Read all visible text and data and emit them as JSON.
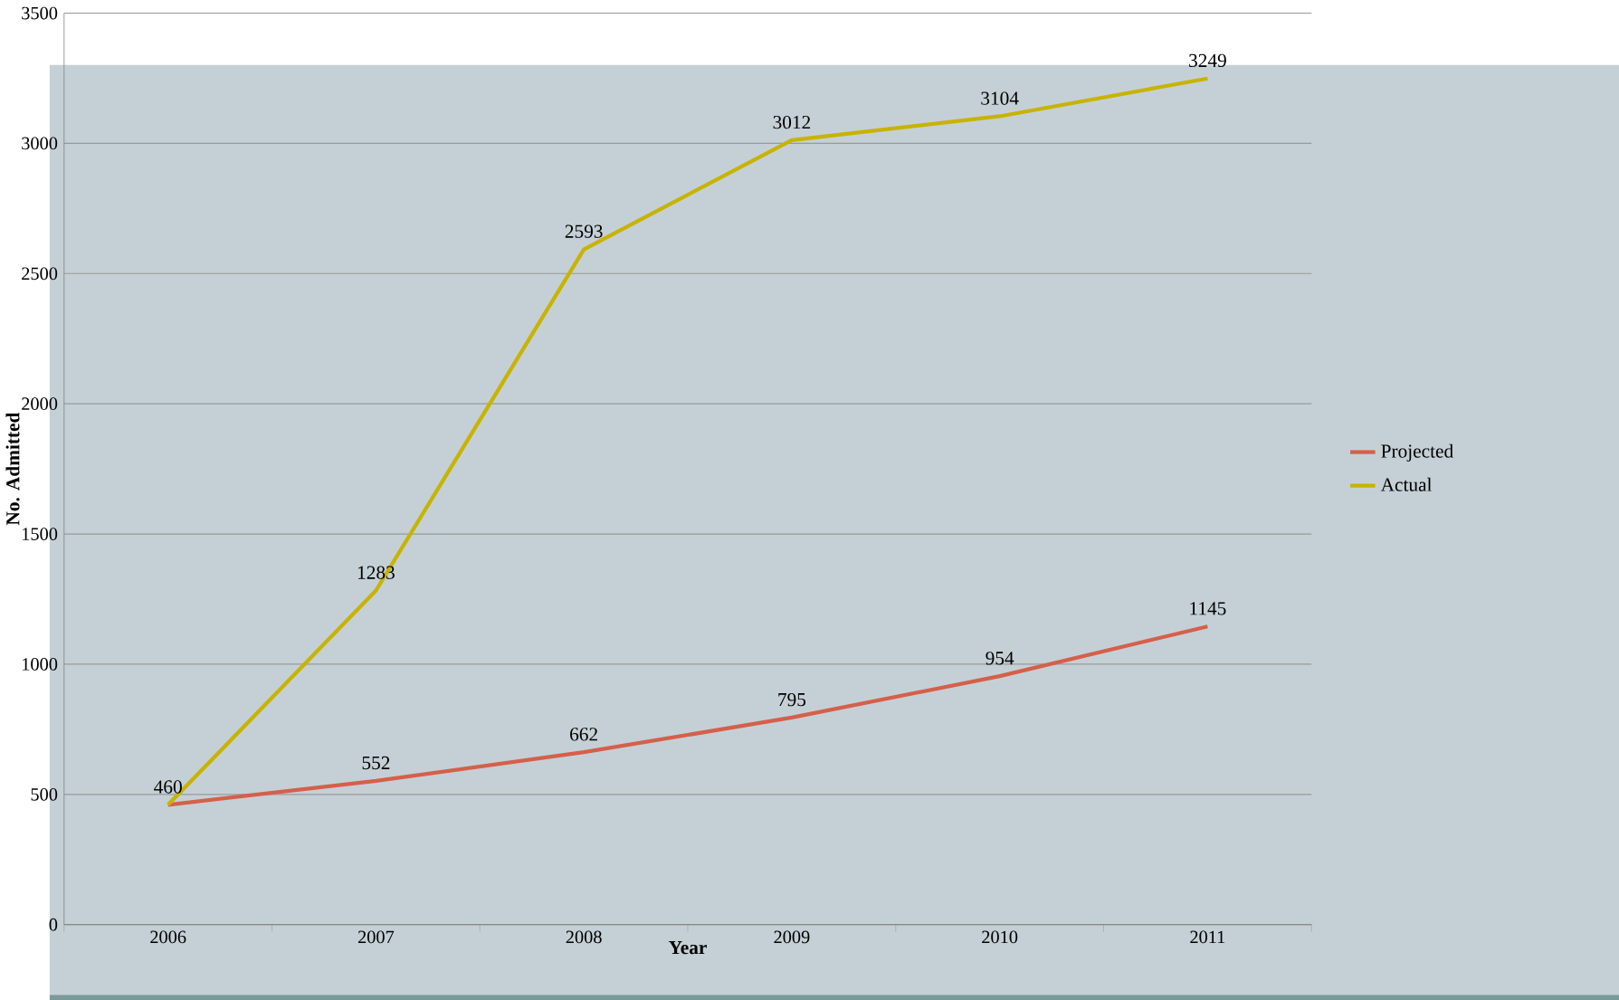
{
  "chart_data": {
    "type": "line",
    "xlabel": "Year",
    "ylabel": "No. Admitted",
    "categories": [
      "2006",
      "2007",
      "2008",
      "2009",
      "2010",
      "2011"
    ],
    "series": [
      {
        "name": "Projected",
        "color": "#d5604a",
        "values": [
          460,
          552,
          662,
          795,
          954,
          1145
        ],
        "value_labels": [
          "460",
          "552",
          "662",
          "795",
          "954",
          "1145"
        ]
      },
      {
        "name": "Actual",
        "color": "#c8b400",
        "values": [
          460,
          1283,
          2593,
          3012,
          3104,
          3249
        ],
        "value_labels": [
          null,
          "1283",
          "2593",
          "3012",
          "3104",
          "3249"
        ]
      }
    ],
    "ylim": [
      0,
      3500
    ],
    "yticks": [
      0,
      500,
      1000,
      1500,
      2000,
      2500,
      3000,
      3500
    ],
    "grid": "y",
    "legend": "right",
    "marker": "none",
    "line_style": "solid"
  }
}
